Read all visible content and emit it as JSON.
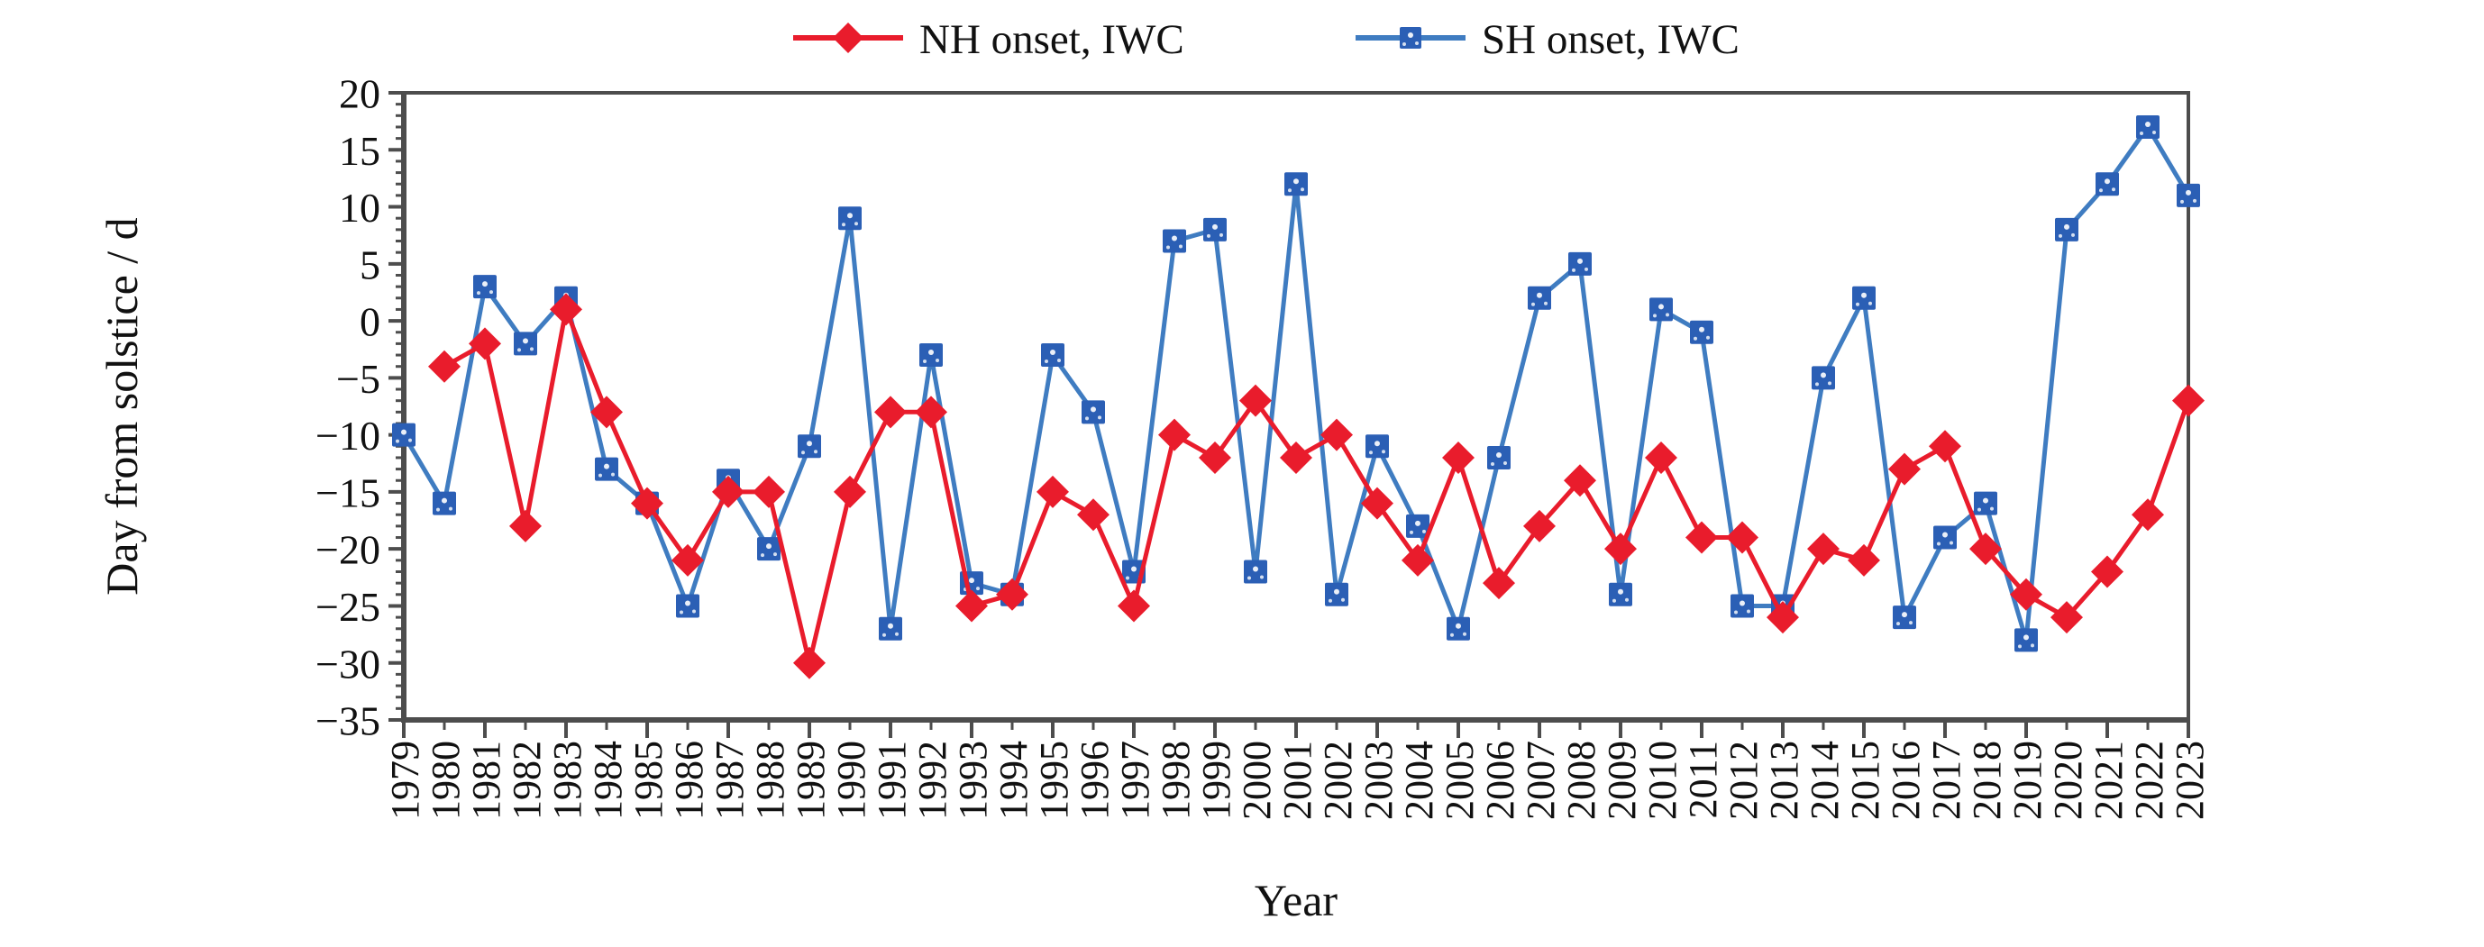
{
  "chart_data": {
    "type": "line",
    "title": "",
    "xlabel": "Year",
    "ylabel": "Day from solstice / d",
    "ylim": [
      -35,
      20
    ],
    "ytick_step": 5,
    "ytick_labels": [
      "20",
      "15",
      "10",
      "5",
      "0",
      "−5",
      "−10",
      "−15",
      "−20",
      "−25",
      "−30",
      "−35"
    ],
    "grid": false,
    "legend_position": "top-center",
    "x": [
      1979,
      1980,
      1981,
      1982,
      1983,
      1984,
      1985,
      1986,
      1987,
      1988,
      1989,
      1990,
      1991,
      1992,
      1993,
      1994,
      1995,
      1996,
      1997,
      1998,
      1999,
      2000,
      2001,
      2002,
      2003,
      2004,
      2005,
      2006,
      2007,
      2008,
      2009,
      2010,
      2011,
      2012,
      2013,
      2014,
      2015,
      2016,
      2017,
      2018,
      2019,
      2020,
      2021,
      2022,
      2023
    ],
    "series": [
      {
        "name": "SH onset, IWC",
        "marker": "square",
        "line_color": "#3f7cc1",
        "marker_color": "#2b5fb5",
        "values": [
          -10,
          -16,
          3,
          -2,
          2,
          -13,
          -16,
          -25,
          -14,
          -20,
          -11,
          9,
          -27,
          -3,
          -23,
          -24,
          -3,
          -8,
          -22,
          7,
          8,
          -22,
          12,
          -24,
          -11,
          -18,
          -27,
          -12,
          2,
          5,
          -24,
          1,
          -1,
          -25,
          -25,
          -5,
          2,
          -26,
          -19,
          -16,
          -28,
          8,
          12,
          17,
          11
        ]
      },
      {
        "name": "NH onset, IWC",
        "marker": "diamond",
        "line_color": "#e91c2c",
        "marker_color": "#e91c2c",
        "values": [
          null,
          -4,
          -2,
          -18,
          1,
          -8,
          -16,
          -21,
          -15,
          -15,
          -30,
          -15,
          -8,
          -8,
          -25,
          -24,
          -15,
          -17,
          -25,
          -10,
          -12,
          -7,
          -12,
          -10,
          -16,
          -21,
          -12,
          -23,
          -18,
          -14,
          -20,
          -12,
          -19,
          -19,
          -26,
          -20,
          -21,
          -13,
          -11,
          -20,
          -24,
          -26,
          -22,
          -17,
          -7
        ]
      }
    ],
    "axis_color": "#4d4d4d"
  }
}
